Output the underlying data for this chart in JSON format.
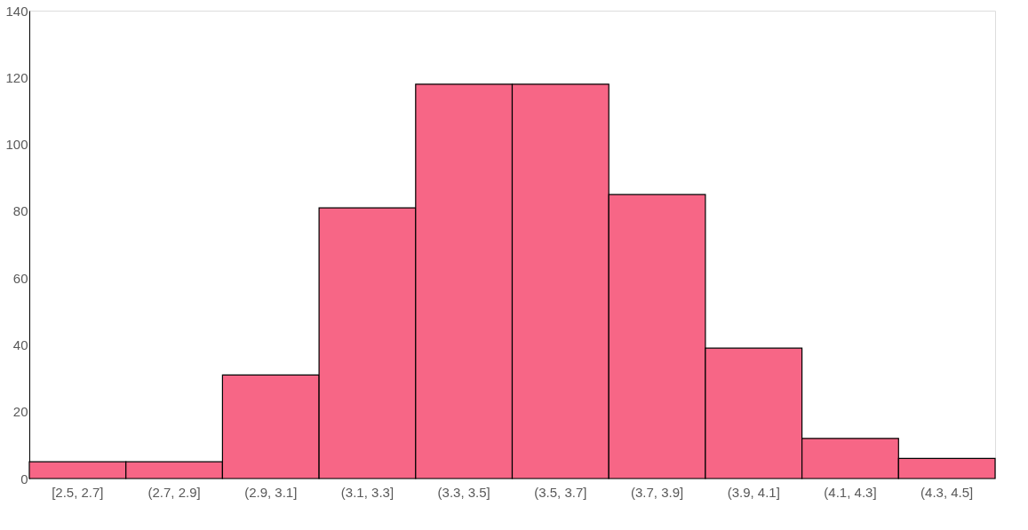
{
  "chart_data": {
    "type": "bar",
    "categories": [
      "[2.5, 2.7]",
      "(2.7, 2.9]",
      "(2.9, 3.1]",
      "(3.1, 3.3]",
      "(3.3, 3.5]",
      "(3.5, 3.7]",
      "(3.7, 3.9]",
      "(3.9, 4.1]",
      "(4.1, 4.3]",
      "(4.3, 4.5]"
    ],
    "values": [
      5,
      5,
      31,
      81,
      118,
      118,
      85,
      39,
      12,
      6
    ],
    "color": "#f76686",
    "ylim": [
      0,
      140
    ],
    "yticks": [
      0,
      20,
      40,
      60,
      80,
      100,
      120,
      140
    ],
    "grid": false
  }
}
